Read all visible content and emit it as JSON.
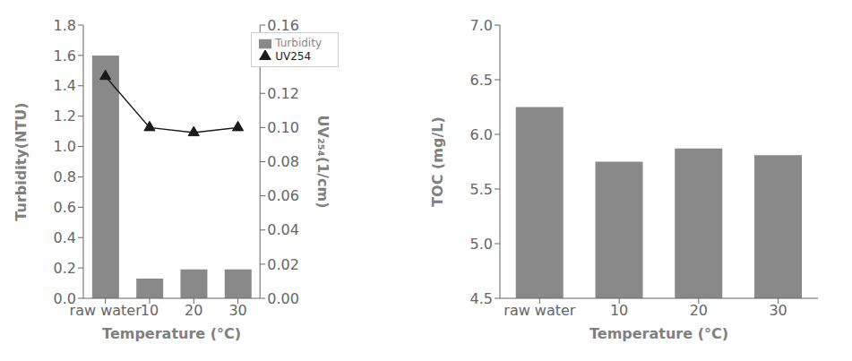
{
  "chart_data": [
    {
      "type": "bar",
      "categories": [
        "raw water",
        "10",
        "20",
        "30"
      ],
      "xlabel": "Temperature (°C)",
      "ylabel": "Turbidity(NTU)",
      "y2label": "UV₂₅₄(1/cm)",
      "series": [
        {
          "name": "Turbidity",
          "type": "bar",
          "color": "#898989",
          "values": [
            1.6,
            0.13,
            0.19,
            0.19
          ]
        },
        {
          "name": "UV254",
          "type": "line",
          "color": "#1a1a1a",
          "marker": "triangle",
          "axis": "y2",
          "values": [
            0.13,
            0.1,
            0.097,
            0.1
          ]
        }
      ],
      "ylim": [
        0,
        1.8
      ],
      "yticks": [
        {
          "value": 0,
          "label": "0.0"
        },
        0.2,
        0.4,
        0.6,
        0.8,
        {
          "value": 1.0,
          "label": "1.0"
        },
        1.2,
        1.4,
        1.6,
        1.8
      ],
      "y2lim": [
        0.0,
        0.16
      ],
      "y2ticks": [
        {
          "value": 0,
          "label": "0.00"
        },
        0.02,
        0.04,
        0.06,
        0.08,
        {
          "value": 0.1,
          "label": "0.10"
        },
        0.12,
        0.14,
        0.16
      ],
      "legend": "upper right",
      "grid": false
    },
    {
      "type": "bar",
      "categories": [
        "raw water",
        "10",
        "20",
        "30"
      ],
      "xlabel": "Temperature (°C)",
      "ylabel": "TOC (mg/L)",
      "color": "#898989",
      "values": [
        6.25,
        5.75,
        5.87,
        5.81
      ],
      "ylim": [
        4.5,
        7.0
      ],
      "yticks": [
        4.5,
        {
          "value": 5.0,
          "label": "5.0"
        },
        5.5,
        {
          "value": 6.0,
          "label": "6.0"
        },
        6.5,
        {
          "value": 7.0,
          "label": "7.0"
        }
      ],
      "grid": false
    }
  ]
}
